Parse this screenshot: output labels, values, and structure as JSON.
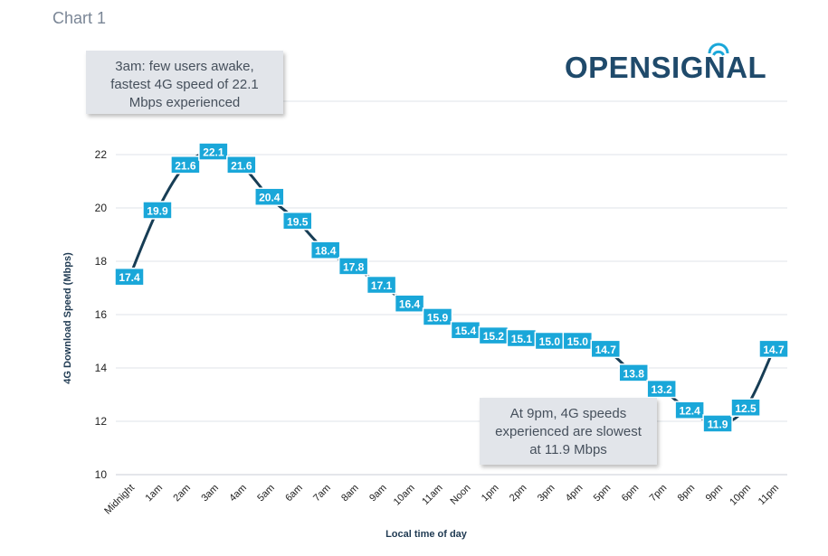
{
  "heading": "Chart 1",
  "logo": {
    "text": "OPENSIGNAL",
    "color": "#1f4a6b",
    "accent": "#1aa7d9"
  },
  "callouts": {
    "top": [
      "3am: few users awake,",
      "fastest 4G speed of 22.1",
      "Mbps experienced"
    ],
    "bottom": [
      "At 9pm, 4G speeds",
      "experienced are slowest",
      "at 11.9 Mbps"
    ]
  },
  "chart_data": {
    "type": "line",
    "categories": [
      "Midnight",
      "1am",
      "2am",
      "3am",
      "4am",
      "5am",
      "6am",
      "7am",
      "8am",
      "9am",
      "10am",
      "11am",
      "Noon",
      "1pm",
      "2pm",
      "3pm",
      "4pm",
      "5pm",
      "6pm",
      "7pm",
      "8pm",
      "9pm",
      "10pm",
      "11pm"
    ],
    "values": [
      17.4,
      19.9,
      21.6,
      22.1,
      21.6,
      20.4,
      19.5,
      18.4,
      17.8,
      17.1,
      16.4,
      15.9,
      15.4,
      15.2,
      15.1,
      15.0,
      15.0,
      14.7,
      13.8,
      13.2,
      12.4,
      11.9,
      12.5,
      14.7
    ],
    "data_labels": [
      "17.4",
      "19.9",
      "21.6",
      "22.1",
      "21.6",
      "20.4",
      "19.5",
      "18.4",
      "17.8",
      "17.1",
      "16.4",
      "15.9",
      "15.4",
      "15.2",
      "15.1",
      "15.0",
      "15.0",
      "14.7",
      "13.8",
      "13.2",
      "12.4",
      "11.9",
      "12.5",
      "14.7"
    ],
    "xlabel": "Local time of day",
    "ylabel": "4G Download Speed (Mbps)",
    "ylim": [
      10,
      23
    ],
    "yticks": [
      10,
      12,
      14,
      16,
      18,
      20,
      22
    ],
    "grid": true,
    "line_color": "#173d55",
    "label_bg": "#1aa7d9",
    "label_text": "#ffffff"
  }
}
